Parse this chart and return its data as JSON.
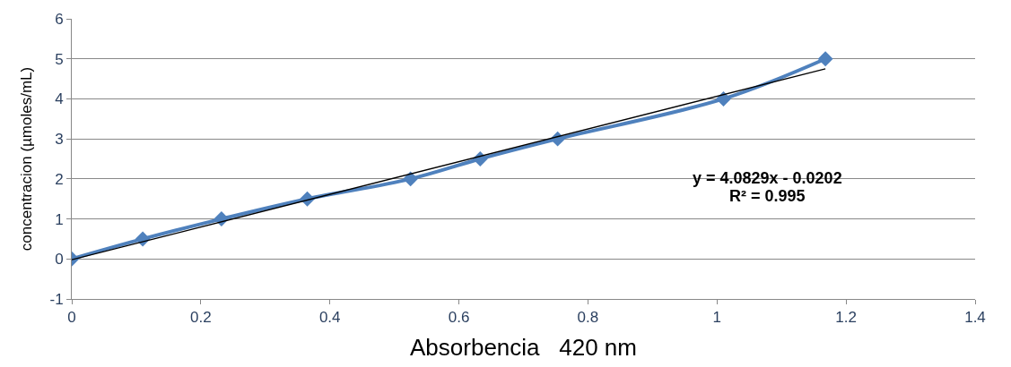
{
  "chart_data": {
    "type": "line",
    "xlabel": "Absorbencia   420 nm",
    "ylabel": "concentracion (µmoles/mL)",
    "xlim": [
      0,
      1.4
    ],
    "xticks": [
      0,
      0.2,
      0.4,
      0.6,
      0.8,
      1,
      1.2,
      1.4
    ],
    "ylim": [
      -1,
      6
    ],
    "yticks": [
      -1,
      0,
      1,
      2,
      3,
      4,
      5,
      6
    ],
    "grid": "y",
    "series": [
      {
        "color": "#4f81bd",
        "marker": "diamond",
        "x": [
          0,
          0.11,
          0.232,
          0.365,
          0.525,
          0.633,
          0.753,
          1.01,
          1.168
        ],
        "values": [
          0,
          0.5,
          1,
          1.5,
          2,
          2.5,
          3,
          4,
          5
        ]
      },
      {
        "type": "line",
        "color": "#000000",
        "marker": "none",
        "x": [
          0,
          1.168
        ],
        "values": [
          -0.02,
          4.75
        ]
      }
    ],
    "annotations": [
      "y = 4.0829x - 0.0202",
      "R² = 0.995"
    ]
  }
}
